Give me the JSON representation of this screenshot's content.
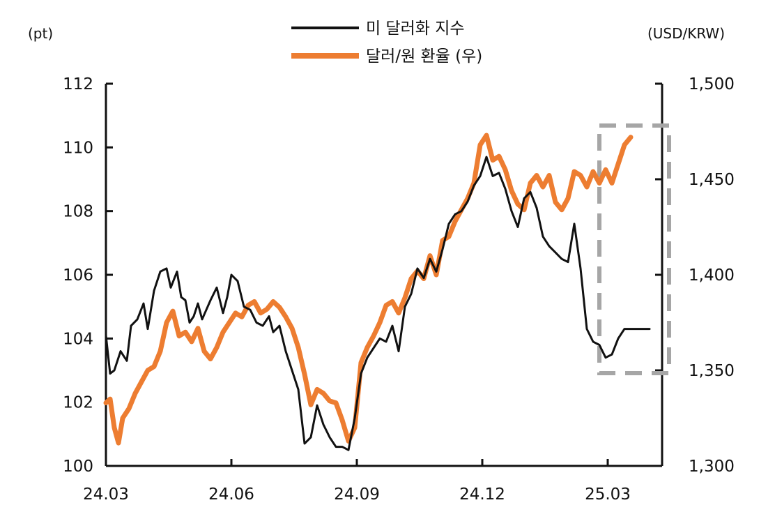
{
  "chart_data": {
    "type": "line",
    "title": "",
    "xlabel": "",
    "y_left_unit": "(pt)",
    "y_right_unit": "(USD/KRW)",
    "ylim_left": [
      100,
      112
    ],
    "ylim_right": [
      1300,
      1500
    ],
    "y_left_ticks": [
      "100",
      "102",
      "104",
      "106",
      "108",
      "110",
      "112"
    ],
    "y_right_ticks": [
      "1,300",
      "1,350",
      "1,400",
      "1,450",
      "1,500"
    ],
    "x_tick_labels": [
      "24.03",
      "24.06",
      "24.09",
      "24.12",
      "25.03"
    ],
    "x_range": [
      0,
      13.3
    ],
    "legend": [
      {
        "label": "미 달러화 지수",
        "color": "#111111"
      },
      {
        "label": "달러/원 환율 (우)",
        "color": "#ED7D31"
      }
    ],
    "series": [
      {
        "name": "미 달러화 지수",
        "axis": "left",
        "color": "#111111",
        "x": [
          0,
          0.1,
          0.2,
          0.35,
          0.5,
          0.6,
          0.75,
          0.9,
          1.0,
          1.15,
          1.3,
          1.45,
          1.55,
          1.7,
          1.8,
          1.9,
          2.0,
          2.1,
          2.2,
          2.3,
          2.4,
          2.5,
          2.65,
          2.8,
          2.9,
          3.0,
          3.15,
          3.3,
          3.45,
          3.6,
          3.75,
          3.9,
          4.0,
          4.15,
          4.3,
          4.45,
          4.6,
          4.75,
          4.9,
          5.05,
          5.2,
          5.35,
          5.5,
          5.65,
          5.8,
          5.95,
          6.1,
          6.25,
          6.4,
          6.55,
          6.7,
          6.85,
          7.0,
          7.15,
          7.3,
          7.45,
          7.6,
          7.75,
          7.9,
          8.05,
          8.2,
          8.35,
          8.5,
          8.65,
          8.8,
          8.95,
          9.1,
          9.25,
          9.4,
          9.55,
          9.7,
          9.85,
          10.0,
          10.15,
          10.3,
          10.45,
          10.6,
          10.75,
          10.9,
          11.05,
          11.2,
          11.35,
          11.5,
          11.65,
          11.8,
          11.95,
          12.1,
          12.25,
          12.4,
          12.55,
          12.7,
          12.85,
          13.0
        ],
        "values": [
          104.1,
          102.9,
          103.0,
          103.6,
          103.3,
          104.4,
          104.6,
          105.1,
          104.3,
          105.5,
          106.1,
          106.2,
          105.6,
          106.1,
          105.3,
          105.2,
          104.5,
          104.7,
          105.1,
          104.6,
          104.9,
          105.2,
          105.6,
          104.8,
          105.3,
          106.0,
          105.8,
          105.0,
          104.9,
          104.5,
          104.4,
          104.7,
          104.2,
          104.4,
          103.6,
          103.0,
          102.4,
          100.7,
          100.9,
          101.9,
          101.3,
          100.9,
          100.6,
          100.6,
          100.5,
          101.5,
          102.9,
          103.4,
          103.7,
          104.0,
          103.9,
          104.4,
          103.6,
          105.0,
          105.4,
          106.2,
          105.9,
          106.5,
          106.1,
          106.8,
          107.6,
          107.9,
          108.0,
          108.3,
          108.8,
          109.1,
          109.7,
          109.1,
          109.2,
          108.7,
          108.0,
          107.5,
          108.4,
          108.6,
          108.1,
          107.2,
          106.9,
          106.7,
          106.5,
          106.4,
          107.6,
          106.2,
          104.3,
          103.9,
          103.8,
          103.4,
          103.5,
          104.0,
          104.3,
          104.3,
          104.3,
          104.3,
          104.3
        ]
      },
      {
        "name": "달러/원 환율 (우)",
        "axis": "right",
        "color": "#ED7D31",
        "x": [
          0,
          0.1,
          0.2,
          0.3,
          0.4,
          0.55,
          0.7,
          0.85,
          1.0,
          1.15,
          1.3,
          1.45,
          1.6,
          1.75,
          1.9,
          2.05,
          2.2,
          2.35,
          2.5,
          2.65,
          2.8,
          2.95,
          3.1,
          3.25,
          3.4,
          3.55,
          3.7,
          3.85,
          4.0,
          4.15,
          4.3,
          4.45,
          4.6,
          4.75,
          4.9,
          5.05,
          5.2,
          5.35,
          5.5,
          5.65,
          5.8,
          5.95,
          6.1,
          6.25,
          6.4,
          6.55,
          6.7,
          6.85,
          7.0,
          7.15,
          7.3,
          7.45,
          7.6,
          7.75,
          7.9,
          8.05,
          8.2,
          8.35,
          8.5,
          8.65,
          8.8,
          8.95,
          9.1,
          9.25,
          9.4,
          9.55,
          9.7,
          9.85,
          10.0,
          10.15,
          10.3,
          10.45,
          10.6,
          10.75,
          10.9,
          11.05,
          11.2,
          11.35,
          11.5,
          11.65,
          11.8,
          11.95,
          12.1,
          12.25,
          12.4,
          12.55
        ],
        "values": [
          1333,
          1335,
          1320,
          1312,
          1325,
          1330,
          1338,
          1344,
          1350,
          1352,
          1360,
          1375,
          1381,
          1368,
          1370,
          1365,
          1372,
          1360,
          1356,
          1362,
          1370,
          1375,
          1380,
          1378,
          1384,
          1386,
          1380,
          1382,
          1386,
          1383,
          1378,
          1372,
          1362,
          1348,
          1332,
          1340,
          1338,
          1334,
          1333,
          1324,
          1313,
          1320,
          1354,
          1362,
          1368,
          1375,
          1384,
          1386,
          1380,
          1388,
          1398,
          1402,
          1398,
          1410,
          1400,
          1418,
          1420,
          1428,
          1434,
          1440,
          1448,
          1468,
          1473,
          1460,
          1462,
          1455,
          1444,
          1437,
          1434,
          1448,
          1452,
          1446,
          1452,
          1438,
          1434,
          1440,
          1454,
          1452,
          1446,
          1454,
          1448,
          1455,
          1448,
          1458,
          1468,
          1472
        ]
      }
    ]
  }
}
